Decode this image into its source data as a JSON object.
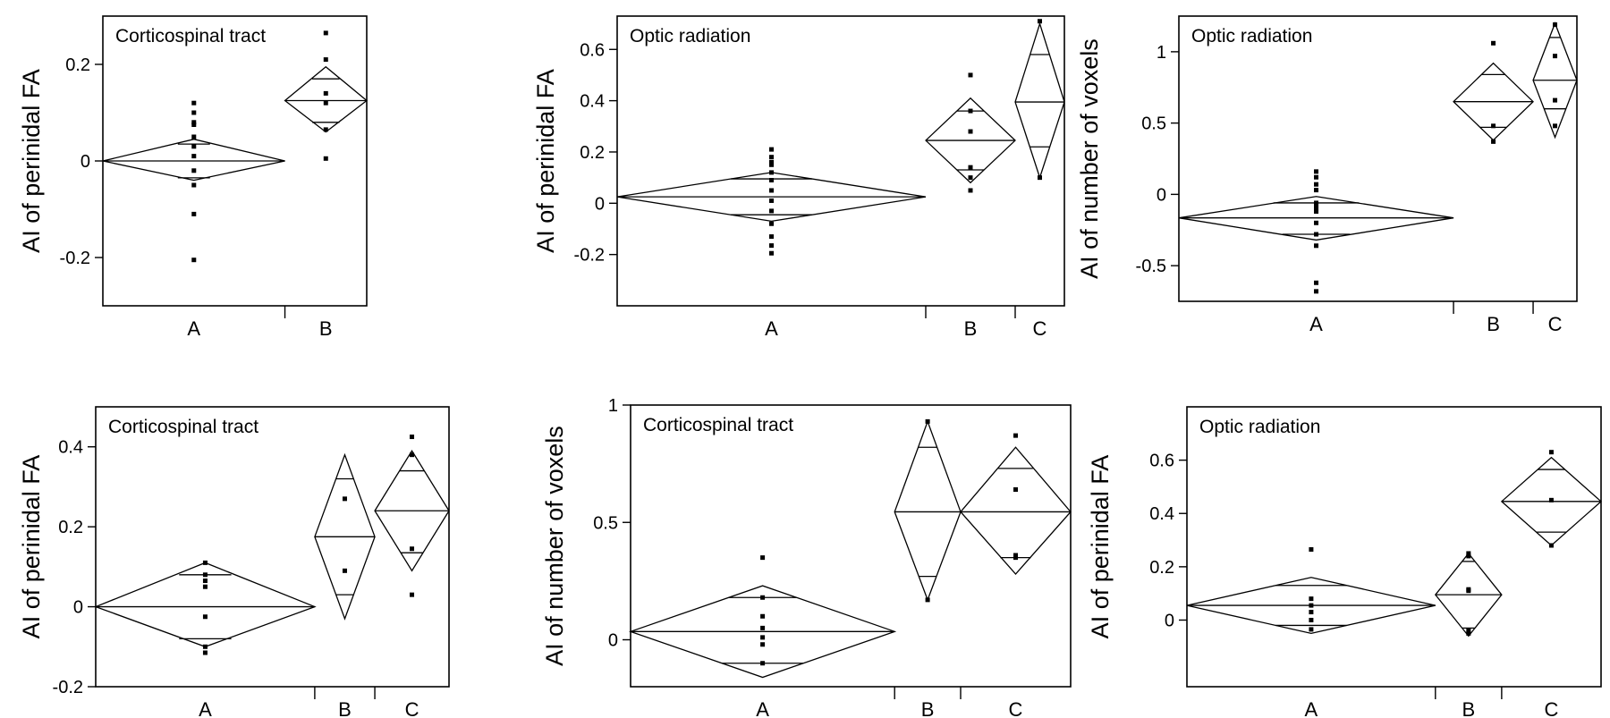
{
  "chart_data": [
    {
      "type": "means-diamond",
      "title": "Corticospinal tract",
      "ylabel": "AI of perinidal FA",
      "xlabel": "",
      "ylim": [
        -0.3,
        0.3
      ],
      "yticks": [
        -0.2,
        0,
        0.2
      ],
      "ytick_labels": [
        "-0.2",
        "0",
        "0.2"
      ],
      "grid": false,
      "groups": [
        {
          "name": "A",
          "weight": 0.69,
          "mean": 0.0,
          "ci": [
            -0.04,
            0.045
          ],
          "inner": [
            -0.035,
            0.035
          ],
          "points": [
            0.12,
            0.1,
            0.08,
            0.075,
            0.05,
            0.03,
            0.01,
            -0.02,
            -0.05,
            -0.11,
            -0.205
          ]
        },
        {
          "name": "B",
          "weight": 0.31,
          "mean": 0.125,
          "ci": [
            0.06,
            0.195
          ],
          "inner": [
            0.08,
            0.17
          ],
          "points": [
            0.265,
            0.21,
            0.14,
            0.12,
            0.065,
            0.005
          ]
        }
      ]
    },
    {
      "type": "means-diamond",
      "title": "Optic radiation",
      "ylabel": "AI of perinidal FA",
      "xlabel": "",
      "ylim": [
        -0.4,
        0.73
      ],
      "yticks": [
        -0.2,
        0,
        0.2,
        0.4,
        0.6
      ],
      "ytick_labels": [
        "-0.2",
        "0",
        "0.2",
        "0.4",
        "0.6"
      ],
      "grid": false,
      "groups": [
        {
          "name": "A",
          "weight": 0.69,
          "mean": 0.025,
          "ci": [
            -0.07,
            0.12
          ],
          "inner": [
            -0.045,
            0.095
          ],
          "points": [
            0.21,
            0.18,
            0.16,
            0.15,
            0.12,
            0.09,
            0.05,
            0.01,
            -0.03,
            -0.08,
            -0.13,
            -0.165,
            -0.195
          ]
        },
        {
          "name": "B",
          "weight": 0.2,
          "mean": 0.245,
          "ci": [
            0.08,
            0.41
          ],
          "inner": [
            0.13,
            0.36
          ],
          "points": [
            0.5,
            0.36,
            0.28,
            0.14,
            0.1,
            0.05
          ]
        },
        {
          "name": "C",
          "weight": 0.11,
          "mean": 0.395,
          "ci": [
            0.1,
            0.7
          ],
          "inner": [
            0.22,
            0.58
          ],
          "points": [
            0.71,
            0.1
          ]
        }
      ]
    },
    {
      "type": "means-diamond",
      "title": "Optic radiation",
      "ylabel": "AI of number of voxels",
      "xlabel": "",
      "ylim": [
        -0.75,
        1.25
      ],
      "yticks": [
        -0.5,
        0,
        0.5,
        1
      ],
      "ytick_labels": [
        "-0.5",
        "0",
        "0.5",
        "1"
      ],
      "grid": false,
      "groups": [
        {
          "name": "A",
          "weight": 0.69,
          "mean": -0.165,
          "ci": [
            -0.32,
            -0.015
          ],
          "inner": [
            -0.28,
            -0.06
          ],
          "points": [
            0.16,
            0.12,
            0.07,
            0.03,
            -0.06,
            -0.08,
            -0.1,
            -0.12,
            -0.2,
            -0.28,
            -0.36,
            -0.62,
            -0.68
          ]
        },
        {
          "name": "B",
          "weight": 0.2,
          "mean": 0.65,
          "ci": [
            0.38,
            0.92
          ],
          "inner": [
            0.47,
            0.84
          ],
          "points": [
            1.06,
            0.48,
            0.37
          ]
        },
        {
          "name": "C",
          "weight": 0.11,
          "mean": 0.8,
          "ci": [
            0.4,
            1.2
          ],
          "inner": [
            0.6,
            1.1
          ],
          "points": [
            1.19,
            0.97,
            0.66,
            0.48
          ]
        }
      ]
    },
    {
      "type": "means-diamond",
      "title": "Corticospinal tract",
      "ylabel": "AI of perinidal FA",
      "xlabel": "",
      "ylim": [
        -0.2,
        0.5
      ],
      "yticks": [
        -0.2,
        0,
        0.2,
        0.4
      ],
      "ytick_labels": [
        "-0.2",
        "0",
        "0.2",
        "0.4"
      ],
      "grid": false,
      "groups": [
        {
          "name": "A",
          "weight": 0.62,
          "mean": 0.0,
          "ci": [
            -0.1,
            0.11
          ],
          "inner": [
            -0.08,
            0.08
          ],
          "points": [
            0.11,
            0.08,
            0.065,
            0.05,
            -0.025,
            -0.1,
            -0.115
          ]
        },
        {
          "name": "B",
          "weight": 0.17,
          "mean": 0.175,
          "ci": [
            -0.03,
            0.38
          ],
          "inner": [
            0.03,
            0.32
          ],
          "points": [
            0.27,
            0.09
          ]
        },
        {
          "name": "C",
          "weight": 0.21,
          "mean": 0.24,
          "ci": [
            0.09,
            0.39
          ],
          "inner": [
            0.135,
            0.34
          ],
          "points": [
            0.425,
            0.38,
            0.145,
            0.03
          ]
        }
      ]
    },
    {
      "type": "means-diamond",
      "title": "Corticospinal tract",
      "ylabel": "AI of number of voxels",
      "xlabel": "",
      "ylim": [
        -0.2,
        1
      ],
      "yticks": [
        0,
        0.5,
        1
      ],
      "ytick_labels": [
        "0",
        "0.5",
        "1"
      ],
      "grid": false,
      "groups": [
        {
          "name": "A",
          "weight": 0.6,
          "mean": 0.035,
          "ci": [
            -0.16,
            0.23
          ],
          "inner": [
            -0.1,
            0.18
          ],
          "points": [
            0.35,
            0.18,
            0.1,
            0.05,
            0.01,
            -0.02,
            -0.1
          ]
        },
        {
          "name": "B",
          "weight": 0.15,
          "mean": 0.545,
          "ci": [
            0.17,
            0.93
          ],
          "inner": [
            0.27,
            0.82
          ],
          "points": [
            0.93,
            0.17
          ]
        },
        {
          "name": "C",
          "weight": 0.25,
          "mean": 0.545,
          "ci": [
            0.28,
            0.82
          ],
          "inner": [
            0.35,
            0.73
          ],
          "points": [
            0.87,
            0.64,
            0.36,
            0.35
          ]
        }
      ]
    },
    {
      "type": "means-diamond",
      "title": "Optic radiation",
      "ylabel": "AI of perinidal FA",
      "xlabel": "",
      "ylim": [
        -0.25,
        0.8
      ],
      "yticks": [
        0,
        0.2,
        0.4,
        0.6
      ],
      "ytick_labels": [
        "0",
        "0.2",
        "0.4",
        "0.6"
      ],
      "grid": false,
      "groups": [
        {
          "name": "A",
          "weight": 0.6,
          "mean": 0.055,
          "ci": [
            -0.05,
            0.16
          ],
          "inner": [
            -0.02,
            0.13
          ],
          "points": [
            0.265,
            0.08,
            0.055,
            0.03,
            0.0,
            -0.035
          ]
        },
        {
          "name": "B",
          "weight": 0.16,
          "mean": 0.095,
          "ci": [
            -0.06,
            0.25
          ],
          "inner": [
            -0.03,
            0.22
          ],
          "points": [
            0.25,
            0.24,
            0.115,
            0.11,
            -0.04,
            -0.05
          ]
        },
        {
          "name": "C",
          "weight": 0.24,
          "mean": 0.445,
          "ci": [
            0.28,
            0.61
          ],
          "inner": [
            0.33,
            0.565
          ],
          "points": [
            0.63,
            0.45,
            0.28
          ]
        }
      ]
    }
  ]
}
